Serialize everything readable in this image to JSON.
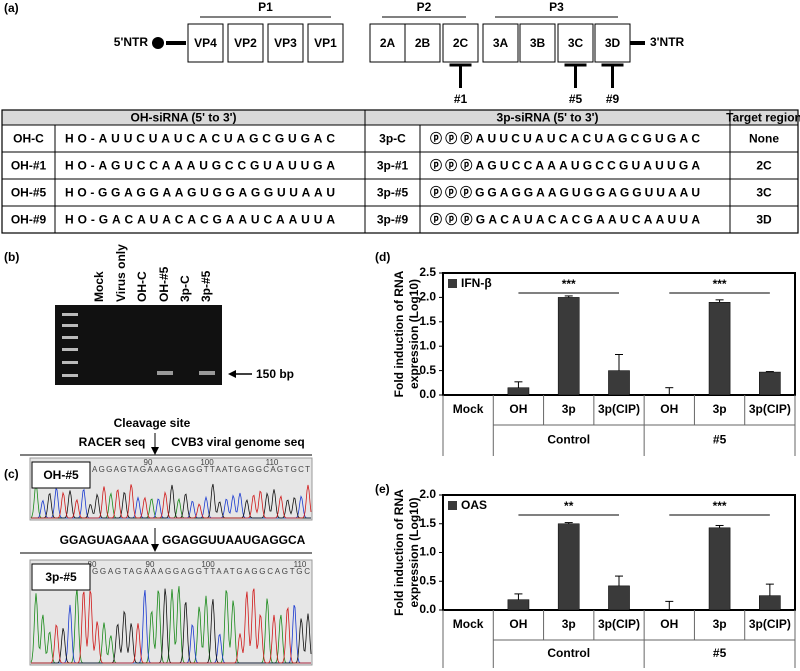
{
  "panel_a": {
    "label": "(a)",
    "genome": {
      "left": "5'NTR",
      "right": "3'NTR",
      "groups": [
        "P1",
        "P2",
        "P3"
      ],
      "proteins": [
        "VP4",
        "VP2",
        "VP3",
        "VP1",
        "2A",
        "2B",
        "2C",
        "3A",
        "3B",
        "3C",
        "3D"
      ],
      "targets": [
        "#1",
        "#5",
        "#9"
      ]
    },
    "table": {
      "header": [
        "OH-siRNA (5' to 3')",
        "3p-siRNA (5' to 3')",
        "Target region"
      ],
      "rows": [
        [
          "OH-C",
          "HO-AUUCUAUCACUAGCGUGAC",
          "3p-C",
          "ⓟⓟⓟAUUCUAUCACUAGCGUGAC",
          "None"
        ],
        [
          "OH-#1",
          "HO-AGUCCAAAUGCCGUAUUGA",
          "3p-#1",
          "ⓟⓟⓟAGUCCAAAUGCCGUAUUGA",
          "2C"
        ],
        [
          "OH-#5",
          "HO-GGAGGAAGUGGAGGUUAAU",
          "3p-#5",
          "ⓟⓟⓟGGAGGAAGUGGAGGUUAAU",
          "3C"
        ],
        [
          "OH-#9",
          "HO-GACAUACACGAAUCAAUUA",
          "3p-#9",
          "ⓟⓟⓟGACAUACACGAAUCAAUUA",
          "3D"
        ]
      ]
    }
  },
  "panel_b": {
    "label": "(b)",
    "lanes": [
      "Mock",
      "Virus only",
      "OH-C",
      "OH-#5",
      "3p-C",
      "3p-#5"
    ],
    "marker": "150 bp"
  },
  "panel_c": {
    "label": "(c)",
    "cleavage": "Cleavage site",
    "left": "RACER seq",
    "right": "CVB3 viral genome seq",
    "sequence_left": "GGAGUAGAAA",
    "sequence_right": "GGAGGUUAAUGAGGCA",
    "traces": [
      {
        "name": "OH-#5",
        "bases": "AGGAGTAGAAAGGAGGTTAATGAGGCAGTGCT",
        "positions": [
          90,
          100,
          110
        ]
      },
      {
        "name": "3p-#5",
        "bases": "GGAGTAGAAAGGAGGTTAATGAGGCAGTGC",
        "positions": [
          80,
          90,
          100,
          110
        ]
      }
    ]
  },
  "chart_data": [
    {
      "type": "bar",
      "panel": "(d)",
      "ylabel": [
        "Fold induction of RNA",
        "expression (Log10)"
      ],
      "categories": [
        "Mock",
        "OH",
        "3p",
        "3p(CIP)",
        "OH",
        "3p",
        "3p(CIP)"
      ],
      "groups": [
        "Control",
        "#5"
      ],
      "series": [
        {
          "name": "IFN-β",
          "color": "#3a3a3a",
          "values": [
            null,
            0.15,
            2.0,
            0.5,
            0.0,
            1.9,
            0.47
          ],
          "errors": [
            null,
            0.12,
            0.03,
            0.33,
            0.15,
            0.05,
            0.01
          ]
        }
      ],
      "annotations": [
        "***",
        "***"
      ],
      "ylim": [
        0,
        2.5
      ],
      "yticks": [
        {
          "value": 0,
          "label": "0.0"
        },
        0.5,
        {
          "value": 1,
          "label": "1.0"
        },
        1.5,
        {
          "value": 2,
          "label": "2.0"
        },
        2.5
      ]
    },
    {
      "type": "bar",
      "panel": "(e)",
      "ylabel": [
        "Fold induction of RNA",
        "expression (Log10)"
      ],
      "categories": [
        "Mock",
        "OH",
        "3p",
        "3p(CIP)",
        "OH",
        "3p",
        "3p(CIP)"
      ],
      "groups": [
        "Control",
        "#5"
      ],
      "series": [
        {
          "name": "OAS",
          "color": "#3a3a3a",
          "values": [
            null,
            0.18,
            1.5,
            0.42,
            0.0,
            1.43,
            0.25
          ],
          "errors": [
            null,
            0.1,
            0.02,
            0.17,
            0.15,
            0.04,
            0.2
          ]
        }
      ],
      "annotations": [
        "**",
        "***"
      ],
      "ylim": [
        0,
        2
      ],
      "yticks": [
        {
          "value": 0,
          "label": "0.0"
        },
        0.5,
        {
          "value": 1,
          "label": "1.0"
        },
        1.5,
        {
          "value": 2,
          "label": "2.0"
        }
      ]
    }
  ]
}
